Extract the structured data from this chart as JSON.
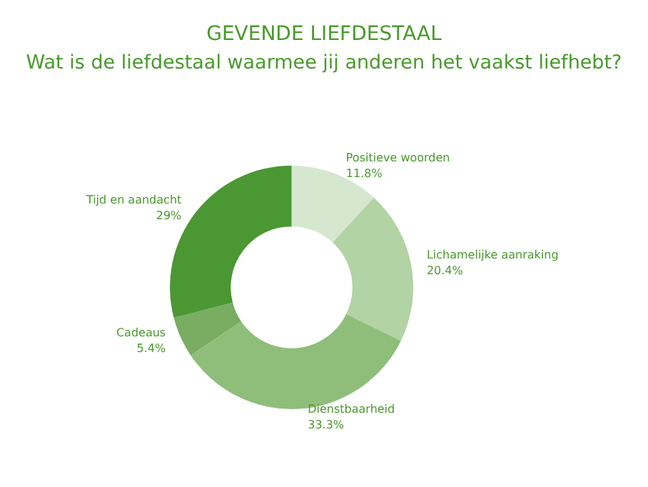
{
  "chart_data": {
    "type": "donut",
    "title": "GEVENDE LIEFDESTAAL",
    "subtitle": "Wat is de liefdestaal waarmee jij anderen het vaakst liefhebt?",
    "categories": [
      "Positieve woorden",
      "Lichamelijke aanraking",
      "Dienstbaarheid",
      "Cadeaus",
      "Tijd en aandacht"
    ],
    "values": [
      11.8,
      20.4,
      33.3,
      5.4,
      29
    ],
    "value_labels": [
      "11.8%",
      "20.4%",
      "33.3%",
      "5.4%",
      "29%"
    ],
    "colors": [
      "#d5e7cf",
      "#b2d3a4",
      "#8fbe7b",
      "#79ad61",
      "#4b9733"
    ],
    "legend": false
  }
}
